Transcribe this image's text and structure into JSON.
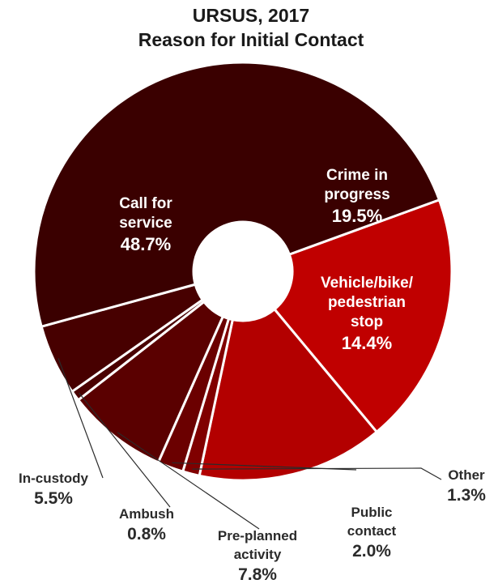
{
  "chart_data": {
    "type": "pie",
    "title": [
      "URSUS, 2017",
      "Reason for Initial Contact"
    ],
    "slices": [
      {
        "name": [
          "Crime in",
          "progress"
        ],
        "value": 19.5,
        "value_label": "19.5%",
        "color": "#c00000",
        "label_side": "inside"
      },
      {
        "name": [
          "Vehicle/bike/",
          "pedestrian",
          "stop"
        ],
        "value": 14.4,
        "value_label": "14.4%",
        "color": "#b30000",
        "label_side": "inside"
      },
      {
        "name": [
          "Other"
        ],
        "value": 1.3,
        "value_label": "1.3%",
        "color": "#800000",
        "label_side": "outside"
      },
      {
        "name": [
          "Public",
          "contact"
        ],
        "value": 2.0,
        "value_label": "2.0%",
        "color": "#6b0000",
        "label_side": "outside"
      },
      {
        "name": [
          "Pre-planned",
          "activity"
        ],
        "value": 7.8,
        "value_label": "7.8%",
        "color": "#5a0000",
        "label_side": "outside"
      },
      {
        "name": [
          "Ambush"
        ],
        "value": 0.8,
        "value_label": "0.8%",
        "color": "#4a0000",
        "label_side": "outside"
      },
      {
        "name": [
          "In-custody"
        ],
        "value": 5.5,
        "value_label": "5.5%",
        "color": "#470000",
        "label_side": "outside"
      },
      {
        "name": [
          "Call for",
          "service"
        ],
        "value": 48.7,
        "value_label": "48.7%",
        "color": "#3a0000",
        "label_side": "inside"
      }
    ]
  }
}
